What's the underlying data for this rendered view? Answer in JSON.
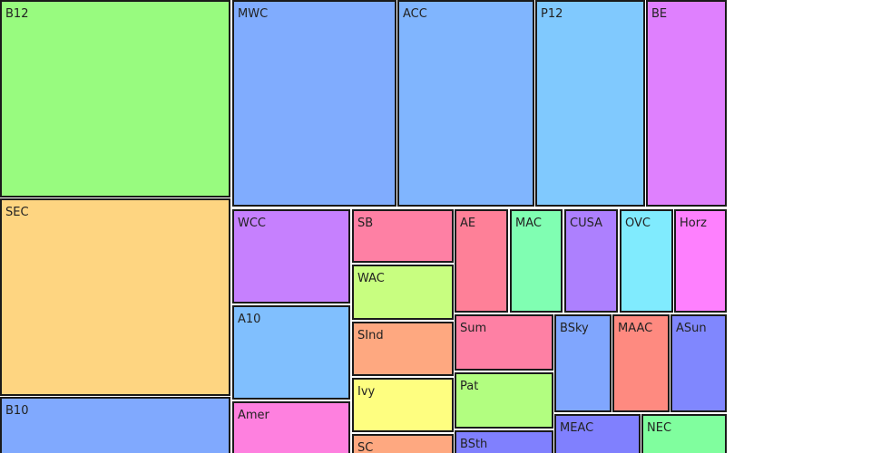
{
  "chart_data": {
    "type": "treemap",
    "items": [
      {
        "label": "B12",
        "color": "#98fb7f"
      },
      {
        "label": "SEC",
        "color": "#fed581"
      },
      {
        "label": "B10",
        "color": "#80a9fe"
      },
      {
        "label": "MWC",
        "color": "#80acfe"
      },
      {
        "label": "ACC",
        "color": "#80b5fe"
      },
      {
        "label": "P12",
        "color": "#80c9fe"
      },
      {
        "label": "BE",
        "color": "#df80fe"
      },
      {
        "label": "WCC",
        "color": "#c680fe"
      },
      {
        "label": "A10",
        "color": "#80bffe"
      },
      {
        "label": "Amer",
        "color": "#fe80df"
      },
      {
        "label": "SB",
        "color": "#fe80a4"
      },
      {
        "label": "WAC",
        "color": "#c8fe80"
      },
      {
        "label": "SInd",
        "color": "#fea880"
      },
      {
        "label": "Ivy",
        "color": "#fefe80"
      },
      {
        "label": "SC",
        "color": "#fea880"
      },
      {
        "label": "AE",
        "color": "#fe8098"
      },
      {
        "label": "MAC",
        "color": "#80feb2"
      },
      {
        "label": "CUSA",
        "color": "#ad80fe"
      },
      {
        "label": "OVC",
        "color": "#80ebfe"
      },
      {
        "label": "Horz",
        "color": "#fe80fe"
      },
      {
        "label": "Sum",
        "color": "#fe80a4"
      },
      {
        "label": "Pat",
        "color": "#b2fe80"
      },
      {
        "label": "BSth",
        "color": "#8080fe"
      },
      {
        "label": "BSky",
        "color": "#80a6fe"
      },
      {
        "label": "MAAC",
        "color": "#fe8a80"
      },
      {
        "label": "ASun",
        "color": "#8087fe"
      },
      {
        "label": "MEAC",
        "color": "#8080fe"
      },
      {
        "label": "NEC",
        "color": "#80fe9e"
      }
    ]
  }
}
